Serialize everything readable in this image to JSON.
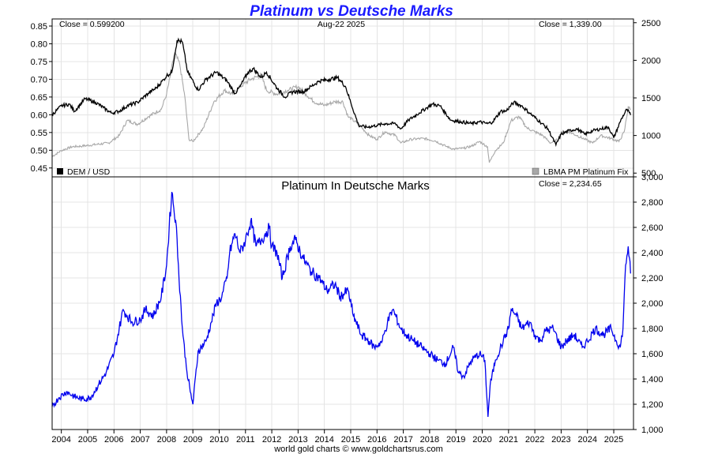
{
  "title": "Platinum vs Deutsche Marks",
  "credit": "world gold charts © www.goldchartsrus.com",
  "colors": {
    "title": "#1a1aff",
    "dem": "#000000",
    "platinum_usd": "#a8a8a8",
    "platinum_dem": "#0000ee"
  },
  "chart_data": [
    {
      "type": "line",
      "date_label": "Aug-22  2025",
      "left_close": "Close = 0.599200",
      "right_close": "Close = 1,339.00",
      "legend_left": "DEM / USD",
      "legend_right": "LBMA PM Platinum Fix",
      "y_left_ticks": [
        "0.45",
        "0.50",
        "0.55",
        "0.60",
        "0.65",
        "0.70",
        "0.75",
        "0.80",
        "0.85"
      ],
      "y_right_ticks": [
        "500",
        "1000",
        "1500",
        "2000",
        "2500"
      ],
      "y_left_lim": [
        0.425,
        0.87
      ],
      "y_right_lim": [
        450,
        2550
      ],
      "grid": true,
      "series": [
        {
          "name": "DEM / USD",
          "axis": "left",
          "x": [
            2003.65,
            2004.0,
            2004.3,
            2004.5,
            2004.9,
            2005.3,
            2005.6,
            2005.9,
            2006.2,
            2006.5,
            2006.9,
            2007.3,
            2007.6,
            2007.9,
            2008.0,
            2008.2,
            2008.4,
            2008.6,
            2008.8,
            2009.2,
            2009.5,
            2009.9,
            2010.3,
            2010.6,
            2010.8,
            2011.1,
            2011.3,
            2011.6,
            2011.8,
            2012.2,
            2012.5,
            2012.8,
            2013.2,
            2013.5,
            2013.8,
            2014.2,
            2014.5,
            2014.8,
            2015.0,
            2015.3,
            2015.6,
            2016.0,
            2016.3,
            2016.7,
            2016.9,
            2017.2,
            2017.6,
            2017.9,
            2018.1,
            2018.4,
            2018.8,
            2019.2,
            2019.6,
            2019.9,
            2020.2,
            2020.4,
            2020.7,
            2020.9,
            2021.2,
            2021.5,
            2021.8,
            2022.2,
            2022.5,
            2022.8,
            2023.0,
            2023.3,
            2023.6,
            2023.9,
            2024.2,
            2024.5,
            2024.8,
            2025.0,
            2025.3,
            2025.5,
            2025.64
          ],
          "values": [
            0.6,
            0.625,
            0.63,
            0.61,
            0.645,
            0.635,
            0.62,
            0.605,
            0.61,
            0.625,
            0.635,
            0.66,
            0.675,
            0.7,
            0.71,
            0.72,
            0.81,
            0.805,
            0.72,
            0.67,
            0.7,
            0.72,
            0.695,
            0.66,
            0.68,
            0.72,
            0.73,
            0.705,
            0.72,
            0.675,
            0.65,
            0.665,
            0.665,
            0.68,
            0.695,
            0.7,
            0.705,
            0.68,
            0.635,
            0.57,
            0.565,
            0.57,
            0.575,
            0.575,
            0.56,
            0.585,
            0.605,
            0.62,
            0.63,
            0.625,
            0.585,
            0.58,
            0.575,
            0.58,
            0.575,
            0.58,
            0.61,
            0.61,
            0.635,
            0.625,
            0.605,
            0.58,
            0.56,
            0.515,
            0.545,
            0.555,
            0.56,
            0.545,
            0.555,
            0.56,
            0.565,
            0.535,
            0.59,
            0.615,
            0.5992
          ]
        },
        {
          "name": "LBMA PM Platinum Fix",
          "axis": "right",
          "x": [
            2003.65,
            2004.0,
            2004.4,
            2004.8,
            2005.3,
            2005.8,
            2006.2,
            2006.5,
            2006.9,
            2007.3,
            2007.8,
            2008.0,
            2008.15,
            2008.3,
            2008.5,
            2008.7,
            2008.85,
            2009.0,
            2009.4,
            2009.8,
            2010.2,
            2010.5,
            2010.8,
            2011.2,
            2011.6,
            2011.8,
            2012.2,
            2012.6,
            2013.0,
            2013.3,
            2013.6,
            2014.0,
            2014.4,
            2014.7,
            2014.9,
            2015.3,
            2015.7,
            2016.0,
            2016.3,
            2016.7,
            2016.9,
            2017.3,
            2017.8,
            2018.2,
            2018.6,
            2018.9,
            2019.3,
            2019.6,
            2019.9,
            2020.2,
            2020.27,
            2020.5,
            2020.8,
            2021.1,
            2021.4,
            2021.7,
            2022.0,
            2022.3,
            2022.6,
            2022.9,
            2023.0,
            2023.3,
            2023.6,
            2023.9,
            2024.2,
            2024.5,
            2024.9,
            2025.2,
            2025.4,
            2025.55,
            2025.64
          ],
          "values": [
            720,
            800,
            850,
            860,
            880,
            900,
            1000,
            1200,
            1150,
            1250,
            1350,
            1550,
            1800,
            2100,
            1950,
            1500,
            950,
            920,
            1100,
            1450,
            1600,
            1550,
            1650,
            1750,
            1800,
            1600,
            1550,
            1600,
            1650,
            1550,
            1450,
            1400,
            1450,
            1450,
            1250,
            1150,
            1000,
            950,
            1050,
            1000,
            900,
            950,
            960,
            930,
            860,
            820,
            830,
            860,
            920,
            850,
            640,
            800,
            900,
            1200,
            1250,
            1100,
            1050,
            1000,
            900,
            950,
            1050,
            1050,
            1000,
            950,
            900,
            1000,
            960,
            920,
            1050,
            1380,
            1339
          ]
        }
      ]
    },
    {
      "type": "line",
      "title": "Platinum In Deutsche Marks",
      "close": "Close = 2,234.65",
      "y_ticks": [
        "1,000",
        "1,200",
        "1,400",
        "1,600",
        "1,800",
        "2,000",
        "2,200",
        "2,400",
        "2,600",
        "2,800",
        "3,000"
      ],
      "ylim": [
        1000,
        3000
      ],
      "x_ticks": [
        "2004",
        "2005",
        "2006",
        "2007",
        "2008",
        "2009",
        "2010",
        "2011",
        "2012",
        "2013",
        "2014",
        "2015",
        "2016",
        "2017",
        "2018",
        "2019",
        "2020",
        "2021",
        "2022",
        "2023",
        "2024",
        "2025"
      ],
      "xlim": [
        2003.65,
        2025.75
      ],
      "grid": true,
      "series": [
        {
          "name": "Platinum In Deutsche Marks",
          "x": [
            2003.65,
            2003.9,
            2004.2,
            2004.5,
            2004.8,
            2005.1,
            2005.4,
            2005.7,
            2006.0,
            2006.2,
            2006.35,
            2006.5,
            2006.7,
            2007.0,
            2007.2,
            2007.5,
            2007.8,
            2008.0,
            2008.1,
            2008.2,
            2008.35,
            2008.45,
            2008.6,
            2008.75,
            2008.9,
            2009.0,
            2009.2,
            2009.5,
            2009.7,
            2009.9,
            2010.1,
            2010.3,
            2010.4,
            2010.6,
            2010.8,
            2011.0,
            2011.2,
            2011.4,
            2011.6,
            2011.9,
            2012.0,
            2012.2,
            2012.4,
            2012.7,
            2012.9,
            2013.2,
            2013.5,
            2013.8,
            2014.1,
            2014.4,
            2014.6,
            2014.9,
            2015.1,
            2015.4,
            2015.7,
            2015.9,
            2016.2,
            2016.4,
            2016.6,
            2016.9,
            2017.1,
            2017.4,
            2017.7,
            2018.0,
            2018.3,
            2018.6,
            2018.9,
            2019.1,
            2019.3,
            2019.6,
            2019.9,
            2020.1,
            2020.22,
            2020.3,
            2020.5,
            2020.8,
            2021.0,
            2021.1,
            2021.3,
            2021.5,
            2021.8,
            2022.0,
            2022.2,
            2022.4,
            2022.7,
            2023.0,
            2023.2,
            2023.5,
            2023.8,
            2024.0,
            2024.3,
            2024.6,
            2024.9,
            2025.1,
            2025.25,
            2025.35,
            2025.45,
            2025.55,
            2025.64
          ],
          "values": [
            1180,
            1250,
            1300,
            1260,
            1240,
            1250,
            1350,
            1450,
            1600,
            1800,
            1950,
            1900,
            1850,
            1870,
            1950,
            1900,
            2050,
            2300,
            2600,
            2880,
            2650,
            2300,
            1800,
            1500,
            1300,
            1200,
            1620,
            1700,
            1850,
            2000,
            2050,
            2200,
            2400,
            2550,
            2400,
            2500,
            2650,
            2450,
            2500,
            2600,
            2450,
            2400,
            2200,
            2450,
            2500,
            2350,
            2250,
            2200,
            2100,
            2150,
            2050,
            2100,
            1900,
            1750,
            1700,
            1650,
            1700,
            1850,
            1950,
            1800,
            1750,
            1700,
            1650,
            1600,
            1550,
            1520,
            1650,
            1450,
            1420,
            1550,
            1600,
            1550,
            1100,
            1350,
            1550,
            1700,
            1800,
            1950,
            1900,
            1800,
            1850,
            1750,
            1700,
            1780,
            1800,
            1650,
            1700,
            1750,
            1650,
            1700,
            1800,
            1750,
            1800,
            1700,
            1650,
            1800,
            2300,
            2450,
            2235
          ]
        }
      ]
    }
  ]
}
